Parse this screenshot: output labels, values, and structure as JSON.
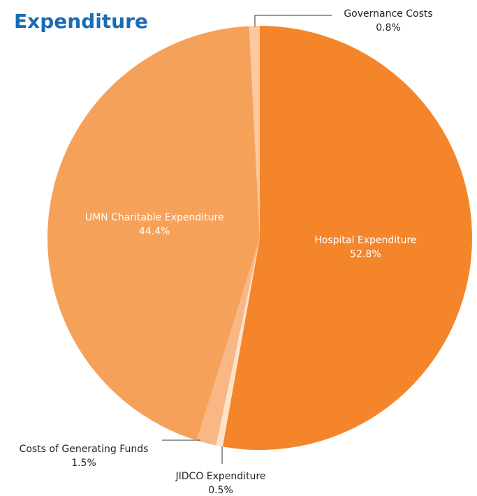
{
  "chart_data": {
    "type": "pie",
    "title": "Expenditure",
    "categories": [
      "Hospital Expenditure",
      "JIDCO Expenditure",
      "Costs of Generating Funds",
      "UMN Charitable Expenditure",
      "Governance Costs"
    ],
    "values": [
      52.8,
      0.5,
      1.5,
      44.4,
      0.8
    ],
    "value_labels": [
      "52.8%",
      "0.5%",
      "1.5%",
      "44.4%",
      "0.8%"
    ],
    "colors": [
      "#f5852a",
      "#fde3cb",
      "#f9b786",
      "#f6a15a",
      "#fbc9a0"
    ]
  }
}
